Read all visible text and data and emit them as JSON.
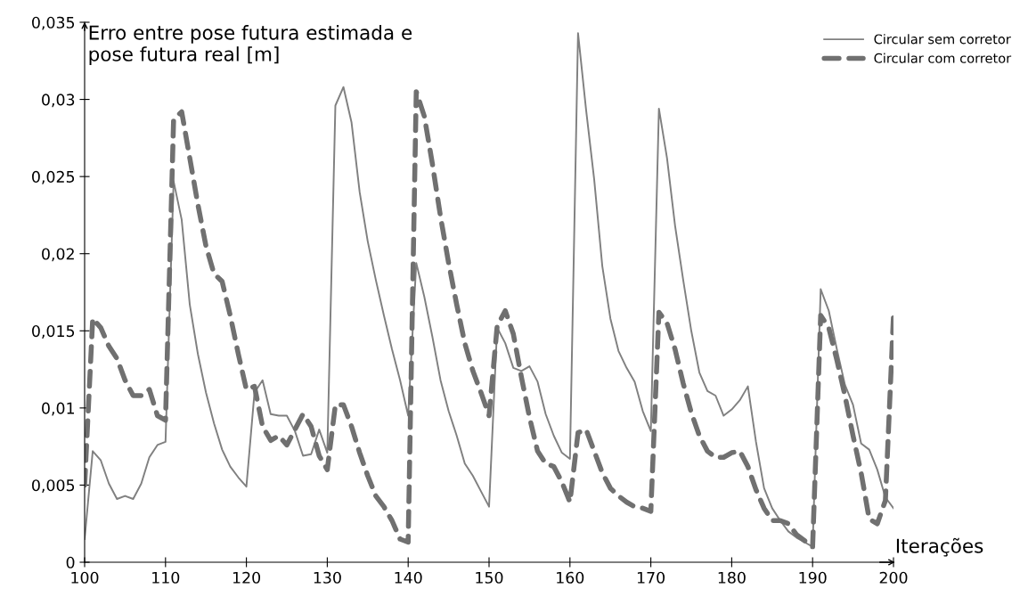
{
  "chart_data": {
    "type": "line",
    "xlabel": "Iterações",
    "ylabel": "Erro entre pose futura estimada e\npose futura real [m]",
    "x": [
      100,
      101,
      102,
      103,
      104,
      105,
      106,
      107,
      108,
      109,
      110,
      111,
      112,
      113,
      114,
      115,
      116,
      117,
      118,
      119,
      120,
      121,
      122,
      123,
      124,
      125,
      126,
      127,
      128,
      129,
      130,
      131,
      132,
      133,
      134,
      135,
      136,
      137,
      138,
      139,
      140,
      141,
      142,
      143,
      144,
      145,
      146,
      147,
      148,
      149,
      150,
      151,
      152,
      153,
      154,
      155,
      156,
      157,
      158,
      159,
      160,
      161,
      162,
      163,
      164,
      165,
      166,
      167,
      168,
      169,
      170,
      171,
      172,
      173,
      174,
      175,
      176,
      177,
      178,
      179,
      180,
      181,
      182,
      183,
      184,
      185,
      186,
      187,
      188,
      189,
      190,
      191,
      192,
      193,
      194,
      195,
      196,
      197,
      198,
      199,
      200
    ],
    "series": [
      {
        "name": "Circular sem corretor",
        "color": "#808080",
        "line_style": "solid",
        "values": [
          0.0015,
          0.0072,
          0.0066,
          0.0051,
          0.0041,
          0.0043,
          0.0041,
          0.0051,
          0.0068,
          0.0076,
          0.0078,
          0.0247,
          0.0222,
          0.0167,
          0.0135,
          0.011,
          0.009,
          0.0073,
          0.0062,
          0.0055,
          0.0049,
          0.011,
          0.0118,
          0.0096,
          0.0095,
          0.0095,
          0.0085,
          0.0069,
          0.007,
          0.0086,
          0.0071,
          0.0296,
          0.0308,
          0.0285,
          0.024,
          0.0208,
          0.0183,
          0.016,
          0.0138,
          0.0118,
          0.0095,
          0.0194,
          0.0172,
          0.0146,
          0.0118,
          0.0098,
          0.0082,
          0.0064,
          0.0056,
          0.0046,
          0.0036,
          0.0152,
          0.0142,
          0.0126,
          0.0124,
          0.0127,
          0.0117,
          0.0096,
          0.0082,
          0.0071,
          0.0067,
          0.0343,
          0.0293,
          0.0248,
          0.0192,
          0.0158,
          0.0137,
          0.0126,
          0.0117,
          0.0098,
          0.0085,
          0.0294,
          0.0262,
          0.0218,
          0.0183,
          0.015,
          0.0123,
          0.0111,
          0.0108,
          0.0095,
          0.0099,
          0.0105,
          0.0114,
          0.0078,
          0.0048,
          0.0035,
          0.0027,
          0.002,
          0.0016,
          0.0013,
          0.001,
          0.0177,
          0.0163,
          0.0138,
          0.0115,
          0.0102,
          0.0077,
          0.0073,
          0.006,
          0.0042,
          0.0035
        ]
      },
      {
        "name": "Circular com corretor",
        "color": "#707070",
        "line_style": "dashed",
        "values": [
          0.005,
          0.0158,
          0.0152,
          0.014,
          0.0132,
          0.0118,
          0.0108,
          0.0108,
          0.0112,
          0.0095,
          0.0092,
          0.0287,
          0.0292,
          0.0262,
          0.0232,
          0.0205,
          0.0187,
          0.0182,
          0.016,
          0.0135,
          0.0112,
          0.0114,
          0.0088,
          0.0079,
          0.0082,
          0.0076,
          0.0086,
          0.0096,
          0.0088,
          0.0069,
          0.006,
          0.0102,
          0.0102,
          0.0088,
          0.0071,
          0.0056,
          0.0043,
          0.0036,
          0.0027,
          0.0015,
          0.0013,
          0.0305,
          0.0289,
          0.0258,
          0.0224,
          0.0194,
          0.0167,
          0.0142,
          0.0124,
          0.011,
          0.0095,
          0.0153,
          0.0163,
          0.0148,
          0.012,
          0.0094,
          0.0072,
          0.0064,
          0.0062,
          0.0052,
          0.0039,
          0.0084,
          0.0086,
          0.0072,
          0.0058,
          0.0048,
          0.0043,
          0.0039,
          0.0036,
          0.0035,
          0.0033,
          0.0162,
          0.0155,
          0.0138,
          0.0116,
          0.0097,
          0.0082,
          0.0072,
          0.0068,
          0.0068,
          0.0071,
          0.0072,
          0.0062,
          0.0047,
          0.0035,
          0.0027,
          0.0027,
          0.0025,
          0.0018,
          0.0014,
          0.001,
          0.016,
          0.0152,
          0.0131,
          0.0108,
          0.0082,
          0.0058,
          0.0028,
          0.0025,
          0.004,
          0.016
        ]
      }
    ],
    "xlim": [
      100,
      200
    ],
    "xticks": [
      100,
      110,
      120,
      130,
      140,
      150,
      160,
      170,
      180,
      190,
      200
    ],
    "ylim": [
      0,
      0.035
    ],
    "yticks": [
      0,
      {
        "value": 0.005,
        "label": "0,005"
      },
      {
        "value": 0.01,
        "label": "0,01"
      },
      {
        "value": 0.015,
        "label": "0,015"
      },
      {
        "value": 0.02,
        "label": "0,02"
      },
      {
        "value": 0.025,
        "label": "0,025"
      },
      {
        "value": 0.03,
        "label": "0,03"
      },
      {
        "value": 0.035,
        "label": "0,035"
      }
    ],
    "grid": false,
    "legend": "top right",
    "marker": "none"
  }
}
